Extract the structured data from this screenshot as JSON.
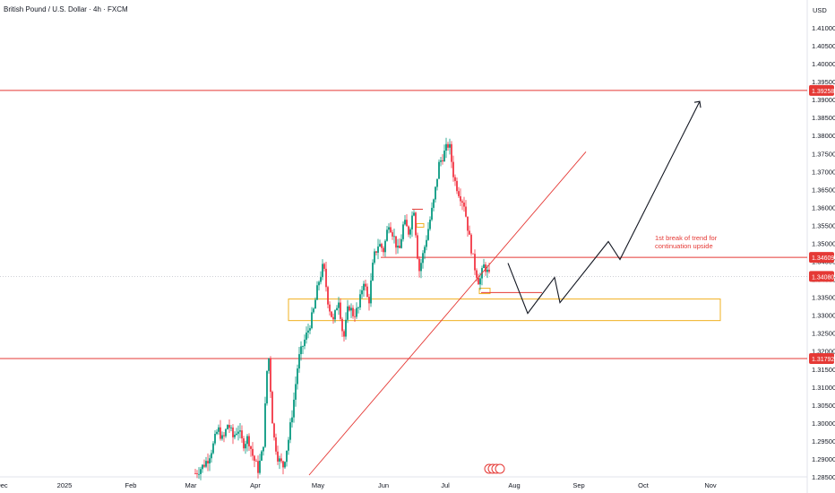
{
  "chart_data": {
    "type": "candlestick",
    "title": "British Pound / U.S. Dollar · 4h · FXCM",
    "currency": "USD",
    "x_ticks": [
      "Dec",
      "2025",
      "Feb",
      "Mar",
      "Apr",
      "May",
      "Jun",
      "Jul",
      "Aug",
      "Sep",
      "Oct",
      "Nov"
    ],
    "y_ticks": [
      "1.28500",
      "1.29000",
      "1.29500",
      "1.30000",
      "1.30500",
      "1.31000",
      "1.31500",
      "1.32000",
      "1.32500",
      "1.33000",
      "1.33500",
      "1.34000",
      "1.34500",
      "1.35000",
      "1.35500",
      "1.36000",
      "1.36500",
      "1.37000",
      "1.37500",
      "1.38000",
      "1.38500",
      "1.39000",
      "1.39500",
      "1.40000",
      "1.40500",
      "1.41000"
    ],
    "ylim": [
      1.285,
      1.415
    ],
    "levels": [
      {
        "value": 1.39258,
        "label": "1.39258",
        "color": "#e53935"
      },
      {
        "value": 1.34609,
        "label": "1.34609",
        "color": "#e53935"
      },
      {
        "value": 1.3408,
        "label": "1.34080",
        "color": "#e53935"
      },
      {
        "value": 1.31792,
        "label": "1.31792",
        "color": "#e53935"
      }
    ],
    "annotation": "1st break of trend for\ncontinuation upside",
    "annotation_lines": [
      "1st break of trend for",
      "continuation upside"
    ],
    "demand_zone": {
      "from_month": "Apr",
      "to_month": "Oct",
      "y_top": 1.3345,
      "y_bottom": 1.3285,
      "color": "#f0b020"
    },
    "trendline": {
      "from": [
        "May",
        1.2855
      ],
      "to": [
        "Aug",
        1.3755
      ],
      "color": "#e53935"
    },
    "projection_path": [
      [
        "Jul",
        1.3445
      ],
      [
        "Aug",
        1.3305
      ],
      [
        "Aug",
        1.3405
      ],
      [
        "Sep",
        1.3335
      ],
      [
        "Sep",
        1.3505
      ],
      [
        "Oct",
        1.3455
      ],
      [
        "Nov",
        1.3895
      ]
    ],
    "price_path": [
      [
        0,
        1.286
      ],
      [
        6,
        1.288
      ],
      [
        10,
        1.29
      ],
      [
        14,
        1.2935
      ],
      [
        18,
        1.2985
      ],
      [
        22,
        1.295
      ],
      [
        26,
        1.3
      ],
      [
        30,
        1.296
      ],
      [
        34,
        1.2985
      ],
      [
        38,
        1.294
      ],
      [
        42,
        1.296
      ],
      [
        46,
        1.2905
      ],
      [
        50,
        1.287
      ],
      [
        54,
        1.293
      ],
      [
        58,
        1.321
      ],
      [
        62,
        1.297
      ],
      [
        66,
        1.29
      ],
      [
        70,
        1.288
      ],
      [
        74,
        1.295
      ],
      [
        78,
        1.305
      ],
      [
        82,
        1.3175
      ],
      [
        86,
        1.322
      ],
      [
        90,
        1.326
      ],
      [
        94,
        1.331
      ],
      [
        98,
        1.339
      ],
      [
        102,
        1.344
      ],
      [
        106,
        1.333
      ],
      [
        110,
        1.328
      ],
      [
        114,
        1.335
      ],
      [
        118,
        1.323
      ],
      [
        122,
        1.333
      ],
      [
        126,
        1.33
      ],
      [
        130,
        1.332
      ],
      [
        134,
        1.34
      ],
      [
        138,
        1.333
      ],
      [
        142,
        1.346
      ],
      [
        146,
        1.35
      ],
      [
        150,
        1.348
      ],
      [
        154,
        1.356
      ],
      [
        158,
        1.352
      ],
      [
        162,
        1.347
      ],
      [
        166,
        1.356
      ],
      [
        170,
        1.353
      ],
      [
        174,
        1.36
      ],
      [
        178,
        1.342
      ],
      [
        182,
        1.348
      ],
      [
        186,
        1.355
      ],
      [
        190,
        1.362
      ],
      [
        194,
        1.372
      ],
      [
        198,
        1.375
      ],
      [
        202,
        1.378
      ],
      [
        206,
        1.368
      ],
      [
        210,
        1.364
      ],
      [
        214,
        1.361
      ],
      [
        218,
        1.352
      ],
      [
        222,
        1.344
      ],
      [
        226,
        1.339
      ],
      [
        230,
        1.344
      ],
      [
        234,
        1.3408
      ]
    ]
  }
}
